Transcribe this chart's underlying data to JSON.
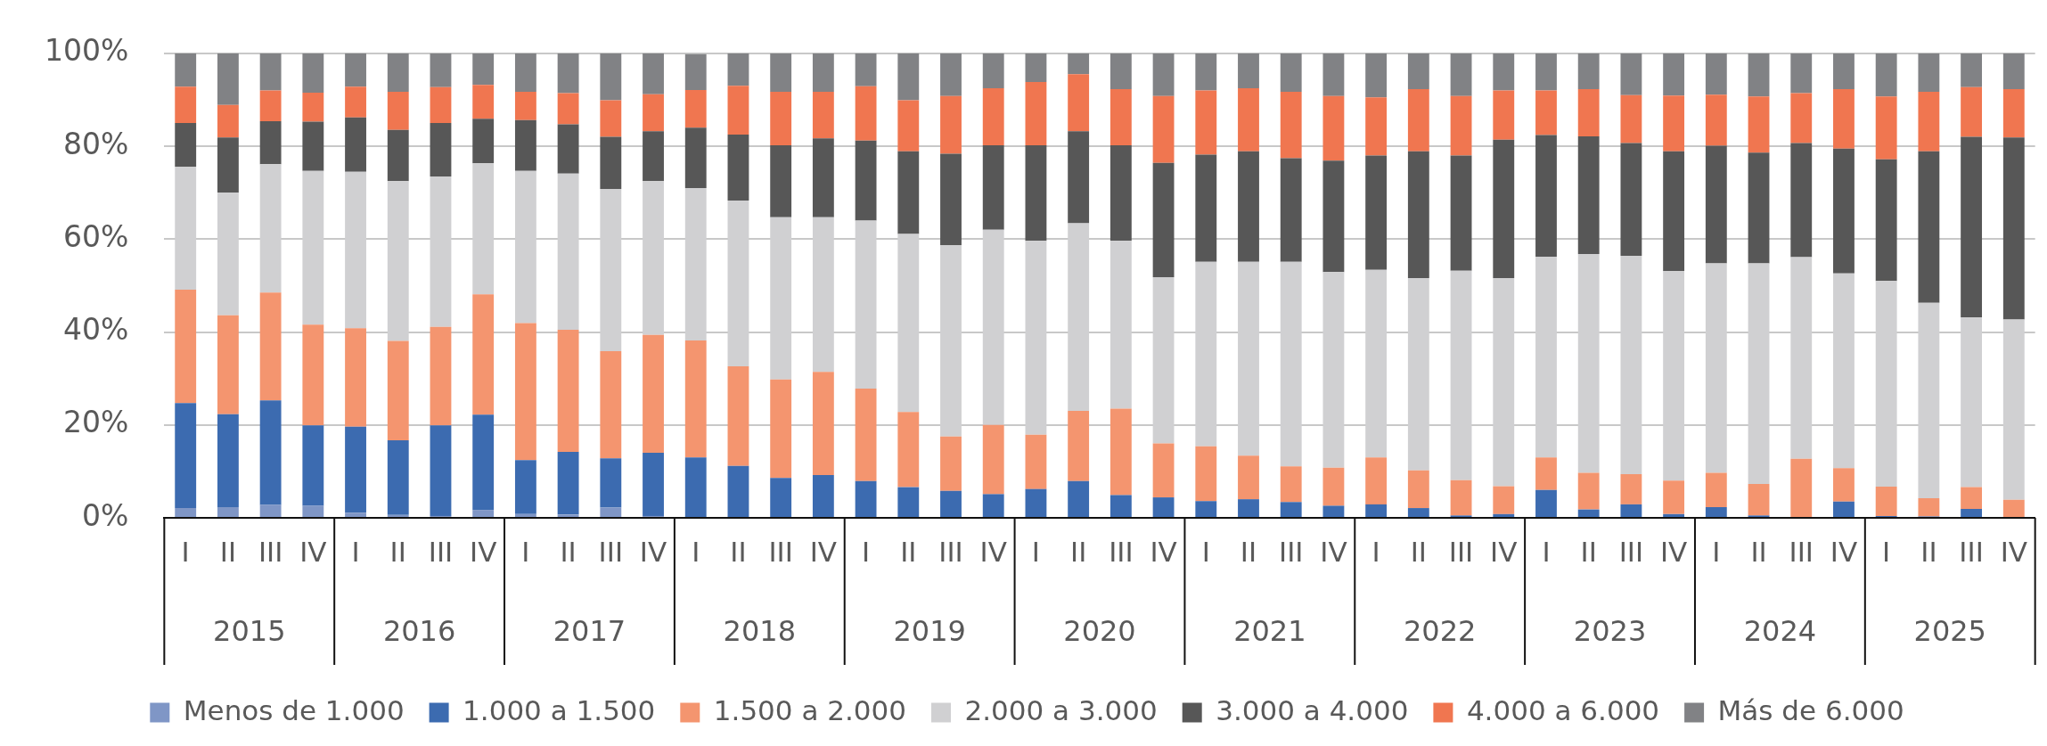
{
  "chart_data": {
    "type": "bar",
    "stacked": true,
    "categories": [
      "I",
      "II",
      "III",
      "IV",
      "I",
      "II",
      "III",
      "IV",
      "I",
      "II",
      "III",
      "IV",
      "I",
      "II",
      "III",
      "IV",
      "I",
      "II",
      "III",
      "IV",
      "I",
      "II",
      "III",
      "IV",
      "I",
      "II",
      "III",
      "IV",
      "I",
      "II",
      "III",
      "IV",
      "I",
      "II",
      "III",
      "IV",
      "I",
      "II",
      "III",
      "IV",
      "I",
      "II",
      "III",
      "IV"
    ],
    "annotations": [
      "2015",
      "2016",
      "2017",
      "2018",
      "2019",
      "2020",
      "2021",
      "2022",
      "2023",
      "2024",
      "2025"
    ],
    "ylim": [
      0,
      100
    ],
    "yticks": [
      {
        "value": 0,
        "label": "0%"
      },
      {
        "value": 20,
        "label": "20%"
      },
      {
        "value": 40,
        "label": "40%"
      },
      {
        "value": 60,
        "label": "60%"
      },
      {
        "value": 80,
        "label": "80%"
      },
      {
        "value": 100,
        "label": "100%"
      }
    ],
    "grid": "y",
    "legend": "bottom",
    "series": [
      {
        "name": "Menos de 1.000",
        "color": "#7f96c6",
        "values": [
          2.1,
          2.3,
          2.8,
          2.6,
          1.1,
          0.6,
          0.4,
          1.7,
          0.8,
          0.7,
          2.2,
          0.4,
          0,
          0,
          0,
          0,
          0,
          0,
          0,
          0,
          0,
          0,
          0,
          0,
          0,
          0,
          0,
          0,
          0,
          0,
          0,
          0,
          0,
          0,
          0,
          0,
          0,
          0,
          0,
          0,
          0,
          0,
          0,
          0
        ]
      },
      {
        "name": "1.000 a 1.500",
        "color": "#3c6bb0",
        "values": [
          22.6,
          20.0,
          22.5,
          17.3,
          18.5,
          16.1,
          19.5,
          20.5,
          11.6,
          13.5,
          10.6,
          13.6,
          13.0,
          11.2,
          8.6,
          9.2,
          7.9,
          6.6,
          5.8,
          5.1,
          6.2,
          7.9,
          4.9,
          4.4,
          3.6,
          4.0,
          3.4,
          2.6,
          2.9,
          2.1,
          0.5,
          0.8,
          6.0,
          1.8,
          2.9,
          0.8,
          2.3,
          0.5,
          0,
          3.5,
          0.4,
          0.3,
          1.9,
          0
        ]
      },
      {
        "name": "1.500 a 2.000",
        "color": "#f4956f",
        "values": [
          24.4,
          21.3,
          23.2,
          21.7,
          21.2,
          21.4,
          21.2,
          25.9,
          29.5,
          26.3,
          23.1,
          25.4,
          25.2,
          21.4,
          21.2,
          22.2,
          19.9,
          16.2,
          11.7,
          14.9,
          11.7,
          15.1,
          18.6,
          11.6,
          11.8,
          9.4,
          7.7,
          8.2,
          10.1,
          8.1,
          7.6,
          6.0,
          7.0,
          7.9,
          6.5,
          7.2,
          7.4,
          6.8,
          12.7,
          7.2,
          6.3,
          3.9,
          4.7,
          3.9
        ]
      },
      {
        "name": "2.000 a 3.000",
        "color": "#d0d0d2",
        "values": [
          26.5,
          26.4,
          27.6,
          33.1,
          33.7,
          34.4,
          32.4,
          28.2,
          32.8,
          33.6,
          34.9,
          33.1,
          32.8,
          35.7,
          34.9,
          33.3,
          36.2,
          38.3,
          41.2,
          42.0,
          41.7,
          40.4,
          36.1,
          35.8,
          39.7,
          41.7,
          44.0,
          42.1,
          40.4,
          41.4,
          45.1,
          44.8,
          43.2,
          47.1,
          47.0,
          45.1,
          45.1,
          47.5,
          43.4,
          41.9,
          44.3,
          42.1,
          36.5,
          38.8
        ]
      },
      {
        "name": "3.000 a 4.000",
        "color": "#575757",
        "values": [
          9.4,
          11.9,
          9.3,
          10.6,
          11.7,
          11.0,
          11.5,
          9.6,
          10.9,
          10.6,
          11.2,
          10.7,
          13.0,
          14.2,
          15.5,
          17.0,
          17.2,
          17.8,
          19.7,
          18.2,
          20.6,
          19.8,
          20.6,
          24.6,
          23.1,
          23.8,
          22.3,
          24.0,
          24.6,
          27.3,
          24.8,
          29.8,
          26.2,
          25.3,
          24.3,
          25.8,
          25.3,
          23.8,
          24.6,
          26.9,
          26.2,
          32.6,
          38.9,
          39.2
        ]
      },
      {
        "name": "4.000 a 6.000",
        "color": "#f07650",
        "values": [
          7.8,
          7.0,
          6.6,
          6.2,
          6.6,
          8.2,
          7.7,
          7.3,
          6.1,
          6.7,
          7.9,
          8.0,
          8.1,
          10.5,
          11.5,
          10.0,
          11.7,
          11.0,
          12.4,
          12.3,
          13.6,
          12.3,
          12.1,
          14.4,
          13.8,
          13.6,
          14.3,
          13.9,
          12.5,
          13.4,
          12.8,
          10.6,
          9.6,
          10.2,
          10.3,
          12.0,
          11.0,
          12.1,
          10.7,
          12.8,
          13.5,
          12.8,
          10.7,
          10.4
        ]
      },
      {
        "name": "Más de 6.000",
        "color": "#818285",
        "values": [
          7.2,
          11.1,
          8.0,
          8.5,
          7.2,
          8.3,
          7.3,
          6.8,
          8.3,
          8.6,
          10.1,
          8.8,
          7.7,
          7.0,
          8.3,
          8.3,
          7.1,
          10.1,
          9.2,
          7.5,
          6.2,
          4.5,
          7.7,
          9.2,
          8.0,
          7.5,
          8.3,
          9.2,
          9.5,
          7.7,
          9.2,
          8.0,
          8.0,
          7.7,
          9.0,
          9.1,
          8.9,
          9.3,
          8.6,
          7.7,
          9.3,
          8.3,
          7.3,
          7.7
        ]
      }
    ]
  }
}
